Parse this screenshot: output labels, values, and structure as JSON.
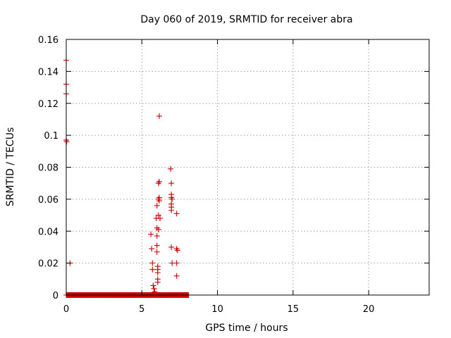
{
  "chart_data": {
    "type": "scatter",
    "title": "Day 060 of 2019, SRMTID for receiver abra",
    "xlabel": "GPS time / hours",
    "ylabel": "SRMTID / TECUs",
    "xlim": [
      0,
      24
    ],
    "ylim": [
      0,
      0.16
    ],
    "xticks": [
      0,
      5,
      10,
      15,
      20
    ],
    "yticks": [
      0,
      0.02,
      0.04,
      0.06,
      0.08,
      0.1,
      0.12,
      0.14,
      0.16
    ],
    "ytick_labels": [
      "0",
      "0.02",
      "0.04",
      "0.06",
      "0.08",
      "0.1",
      "0.12",
      "0.14",
      "0.16"
    ],
    "xtick_labels": [
      "0",
      "5",
      "10",
      "15",
      "20"
    ],
    "grid": true,
    "marker": "+",
    "color": "#cc0000",
    "baseline": {
      "y": 0,
      "x_from": 0,
      "x_to": 8.1,
      "step": 0.0417
    },
    "points": [
      [
        0.0,
        0.147
      ],
      [
        0.0,
        0.132
      ],
      [
        0.0,
        0.126
      ],
      [
        0.0,
        0.097
      ],
      [
        0.03,
        0.096
      ],
      [
        0.25,
        0.02
      ],
      [
        5.6,
        0.038
      ],
      [
        5.65,
        0.029
      ],
      [
        5.7,
        0.02
      ],
      [
        5.7,
        0.016
      ],
      [
        5.75,
        0.006
      ],
      [
        5.8,
        0.004
      ],
      [
        5.85,
        0.002
      ],
      [
        5.95,
        0.048
      ],
      [
        6.0,
        0.056
      ],
      [
        6.0,
        0.042
      ],
      [
        6.0,
        0.037
      ],
      [
        6.0,
        0.031
      ],
      [
        6.0,
        0.027
      ],
      [
        6.05,
        0.018
      ],
      [
        6.05,
        0.016
      ],
      [
        6.05,
        0.014
      ],
      [
        6.05,
        0.01
      ],
      [
        6.05,
        0.008
      ],
      [
        6.1,
        0.07
      ],
      [
        6.1,
        0.06
      ],
      [
        6.1,
        0.05
      ],
      [
        6.1,
        0.041
      ],
      [
        6.15,
        0.071
      ],
      [
        6.15,
        0.061
      ],
      [
        6.15,
        0.059
      ],
      [
        6.15,
        0.112
      ],
      [
        6.2,
        0.048
      ],
      [
        6.9,
        0.079
      ],
      [
        6.95,
        0.07
      ],
      [
        6.95,
        0.063
      ],
      [
        6.95,
        0.061
      ],
      [
        6.95,
        0.057
      ],
      [
        6.95,
        0.055
      ],
      [
        6.95,
        0.053
      ],
      [
        7.0,
        0.06
      ],
      [
        6.95,
        0.03
      ],
      [
        7.0,
        0.02
      ],
      [
        7.3,
        0.051
      ],
      [
        7.3,
        0.029
      ],
      [
        7.35,
        0.028
      ],
      [
        7.3,
        0.02
      ],
      [
        7.3,
        0.012
      ]
    ]
  }
}
